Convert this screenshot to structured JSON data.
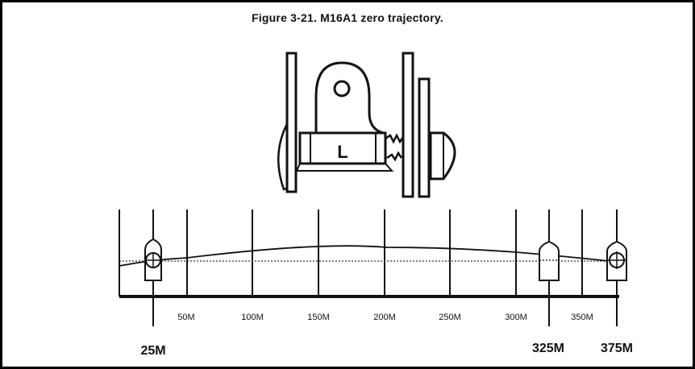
{
  "figure": {
    "title": "Figure 3-21. M16A1 zero trajectory.",
    "sight_letter": "L"
  },
  "ranges": {
    "ticks": [
      "50M",
      "100M",
      "150M",
      "200M",
      "250M",
      "300M",
      "350M"
    ],
    "zero_points": [
      "25M",
      "325M",
      "375M"
    ]
  },
  "colors": {
    "ink": "#111111",
    "background": "#ffffff",
    "border": "#000000"
  }
}
